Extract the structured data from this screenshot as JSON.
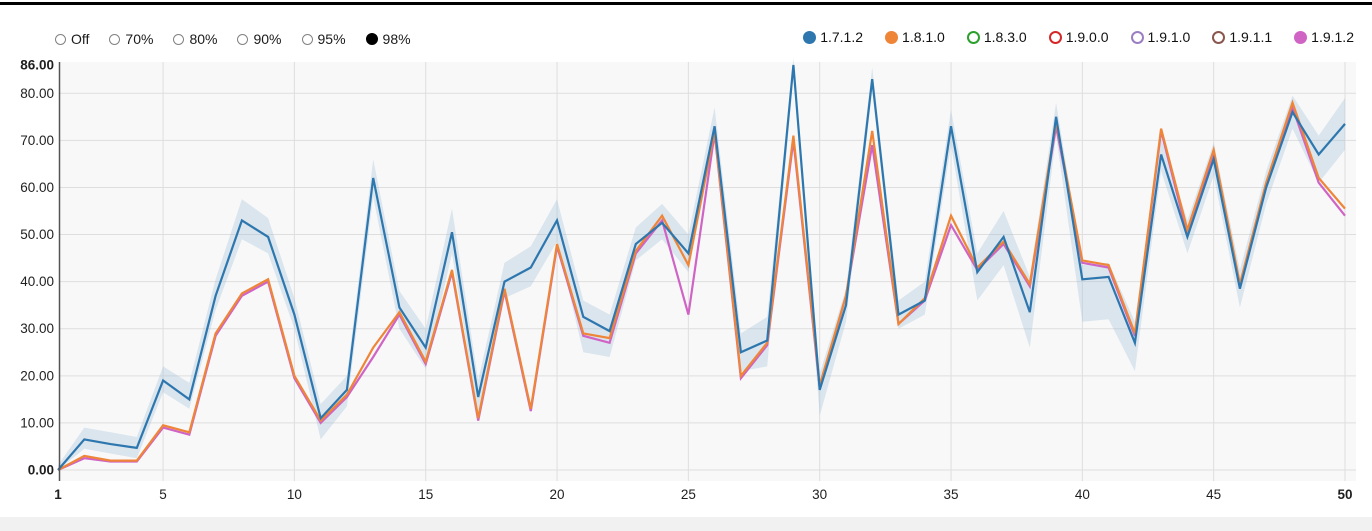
{
  "colors": {
    "blue": "#2e77ae",
    "orange": "#ee8537",
    "pink": "#cf64c4",
    "band_fill": "#9dbdd8",
    "plot_bg": "#f8f8f8",
    "gridline": "#dedede",
    "axis_line": "#555555",
    "tick_text": "#1f1f1f"
  },
  "controls": {
    "options": [
      {
        "label": "Off",
        "selected": false
      },
      {
        "label": "70%",
        "selected": false
      },
      {
        "label": "80%",
        "selected": false
      },
      {
        "label": "90%",
        "selected": false
      },
      {
        "label": "95%",
        "selected": false
      },
      {
        "label": "98%",
        "selected": true
      }
    ]
  },
  "legend": {
    "items": [
      {
        "label": "1.7.1.2",
        "color": "#2e77ae",
        "active": true
      },
      {
        "label": "1.8.1.0",
        "color": "#ee8537",
        "active": true
      },
      {
        "label": "1.8.3.0",
        "color": "#2ca02c",
        "active": false
      },
      {
        "label": "1.9.0.0",
        "color": "#d62728",
        "active": false
      },
      {
        "label": "1.9.1.0",
        "color": "#9b7ec2",
        "active": false
      },
      {
        "label": "1.9.1.1",
        "color": "#8a564e",
        "active": false
      },
      {
        "label": "1.9.1.2",
        "color": "#cf64c4",
        "active": true
      }
    ]
  },
  "chart_data": {
    "type": "line",
    "title": "",
    "xlabel": "",
    "ylabel": "",
    "xlim": [
      1,
      50
    ],
    "ylim": [
      0,
      86
    ],
    "grid": true,
    "legend_position": "top-right",
    "x": [
      1,
      2,
      3,
      4,
      5,
      6,
      7,
      8,
      9,
      10,
      11,
      12,
      13,
      14,
      15,
      16,
      17,
      18,
      19,
      20,
      21,
      22,
      23,
      24,
      25,
      26,
      27,
      28,
      29,
      30,
      31,
      32,
      33,
      34,
      35,
      36,
      37,
      38,
      39,
      40,
      41,
      42,
      43,
      44,
      45,
      46,
      47,
      48,
      49,
      50
    ],
    "x_ticks": [
      {
        "value": 1,
        "label": "1",
        "bold": true
      },
      {
        "value": 5,
        "label": "5",
        "bold": false
      },
      {
        "value": 10,
        "label": "10",
        "bold": false
      },
      {
        "value": 15,
        "label": "15",
        "bold": false
      },
      {
        "value": 20,
        "label": "20",
        "bold": false
      },
      {
        "value": 25,
        "label": "25",
        "bold": false
      },
      {
        "value": 30,
        "label": "30",
        "bold": false
      },
      {
        "value": 35,
        "label": "35",
        "bold": false
      },
      {
        "value": 40,
        "label": "40",
        "bold": false
      },
      {
        "value": 45,
        "label": "45",
        "bold": false
      },
      {
        "value": 50,
        "label": "50",
        "bold": true
      }
    ],
    "y_ticks": [
      {
        "value": 0,
        "label": "0.00",
        "bold": true
      },
      {
        "value": 10,
        "label": "10.00",
        "bold": false
      },
      {
        "value": 20,
        "label": "20.00",
        "bold": false
      },
      {
        "value": 30,
        "label": "30.00",
        "bold": false
      },
      {
        "value": 40,
        "label": "40.00",
        "bold": false
      },
      {
        "value": 50,
        "label": "50.00",
        "bold": false
      },
      {
        "value": 60,
        "label": "60.00",
        "bold": false
      },
      {
        "value": 70,
        "label": "70.00",
        "bold": false
      },
      {
        "value": 80,
        "label": "80.00",
        "bold": false
      },
      {
        "value": 86,
        "label": "86.00",
        "bold": true
      }
    ],
    "series": [
      {
        "name": "1.7.1.2",
        "color": "#2e77ae",
        "values": [
          0,
          6.5,
          5.5,
          4.7,
          19,
          15,
          37,
          53,
          49.5,
          33,
          11,
          17,
          62,
          34.5,
          26,
          50.5,
          15.5,
          40,
          43,
          53,
          32.5,
          29.5,
          48,
          52.5,
          46,
          73,
          25,
          27.5,
          86,
          17,
          35,
          83,
          33,
          36,
          73,
          42,
          49.5,
          33.5,
          75,
          40.5,
          41,
          27,
          67,
          49.5,
          66,
          38.5,
          60,
          76,
          67,
          73.5
        ]
      },
      {
        "name": "1.8.1.0",
        "color": "#ee8537",
        "values": [
          0,
          3,
          2,
          2,
          9.5,
          8,
          29,
          37.5,
          40.5,
          20,
          10.5,
          16,
          26,
          33.5,
          23,
          42.5,
          11,
          38.5,
          13,
          48,
          29,
          28,
          46.5,
          54,
          43.5,
          72,
          20,
          27,
          71,
          18,
          37,
          72,
          31,
          36.5,
          54,
          43,
          48.5,
          39.5,
          74,
          44.5,
          43.5,
          29,
          72.5,
          51,
          68,
          39.5,
          61,
          78,
          62,
          55.5
        ]
      },
      {
        "name": "1.9.1.2",
        "color": "#cf64c4",
        "values": [
          0,
          2.5,
          1.8,
          1.8,
          9,
          7.5,
          28.5,
          37,
          40,
          19.5,
          10,
          15.5,
          24,
          33,
          22.5,
          42,
          10.5,
          38,
          12.5,
          47.5,
          28.5,
          27,
          46,
          53,
          33,
          71.5,
          19.5,
          26.5,
          70,
          17.5,
          37,
          69,
          31,
          36,
          52,
          42.5,
          48,
          39,
          73,
          44,
          43,
          28.5,
          72,
          50,
          67,
          39,
          60.5,
          77,
          61,
          54
        ]
      }
    ],
    "hidden_series": [
      "1.8.3.0",
      "1.9.0.0",
      "1.9.1.0",
      "1.9.1.1"
    ],
    "confidence_band": {
      "series": "1.7.1.2",
      "level": "98%",
      "upper": [
        1,
        9,
        8,
        7,
        22,
        18.5,
        40.5,
        57.5,
        53.5,
        36.5,
        14,
        20,
        66,
        38,
        30,
        55.5,
        19,
        44,
        47.5,
        57.5,
        36,
        33,
        51.5,
        56.5,
        50,
        77,
        29,
        32.5,
        87.5,
        20.5,
        38.5,
        85.5,
        36,
        40,
        76.5,
        46,
        55,
        41,
        78,
        43.5,
        44,
        31.5,
        70.5,
        53,
        69.5,
        42.5,
        63.5,
        79.5,
        71,
        79
      ],
      "lower": [
        0,
        4.5,
        3.5,
        2.5,
        16.5,
        13,
        34,
        49,
        46,
        30,
        6.5,
        13.5,
        58,
        30,
        21.5,
        46,
        11.5,
        36.5,
        39,
        48.5,
        25,
        24,
        44.5,
        49,
        42,
        70,
        21,
        22,
        83.5,
        11.5,
        31.5,
        80.5,
        30,
        33,
        69,
        36,
        43.5,
        26,
        71,
        31.5,
        32,
        21,
        63.5,
        46,
        62.5,
        34.5,
        56.5,
        72.5,
        61,
        68
      ]
    }
  },
  "plot_geometry_note": "y axis 0.00 bottom to 86.00 top, x axis 1 to 50"
}
